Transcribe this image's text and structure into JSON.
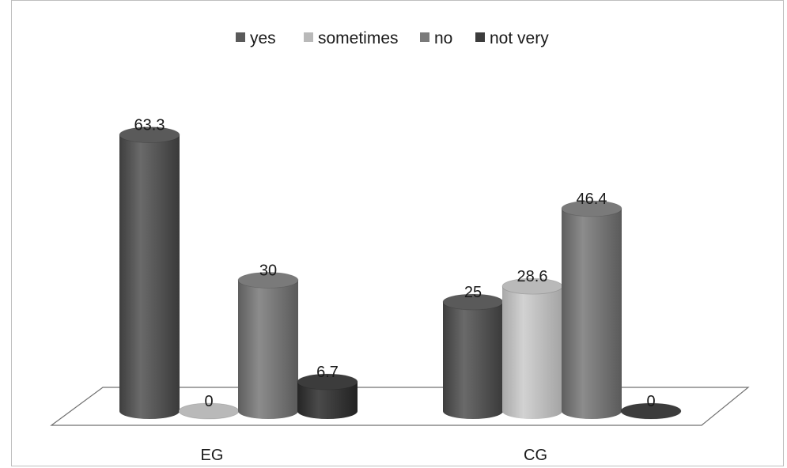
{
  "chart_data": {
    "type": "bar",
    "categories": [
      "EG",
      "CG"
    ],
    "series": [
      {
        "name": "yes",
        "values": [
          63.3,
          25
        ],
        "color": "#5a5a5a"
      },
      {
        "name": "sometimes",
        "values": [
          0,
          28.6
        ],
        "color": "#b9b9b9"
      },
      {
        "name": "no",
        "values": [
          30,
          46.4
        ],
        "color": "#7a7a7a"
      },
      {
        "name": "not very",
        "values": [
          6.7,
          0
        ],
        "color": "#3c3c3c"
      }
    ],
    "data_labels": [
      [
        "63.3",
        "25"
      ],
      [
        "0",
        "28.6"
      ],
      [
        "30",
        "46.4"
      ],
      [
        "6.7",
        "0"
      ]
    ],
    "title": "",
    "xlabel": "",
    "ylabel": "",
    "ylim": [
      0,
      70
    ],
    "grid": false,
    "legend": "top",
    "style": "3d-cylinder"
  }
}
